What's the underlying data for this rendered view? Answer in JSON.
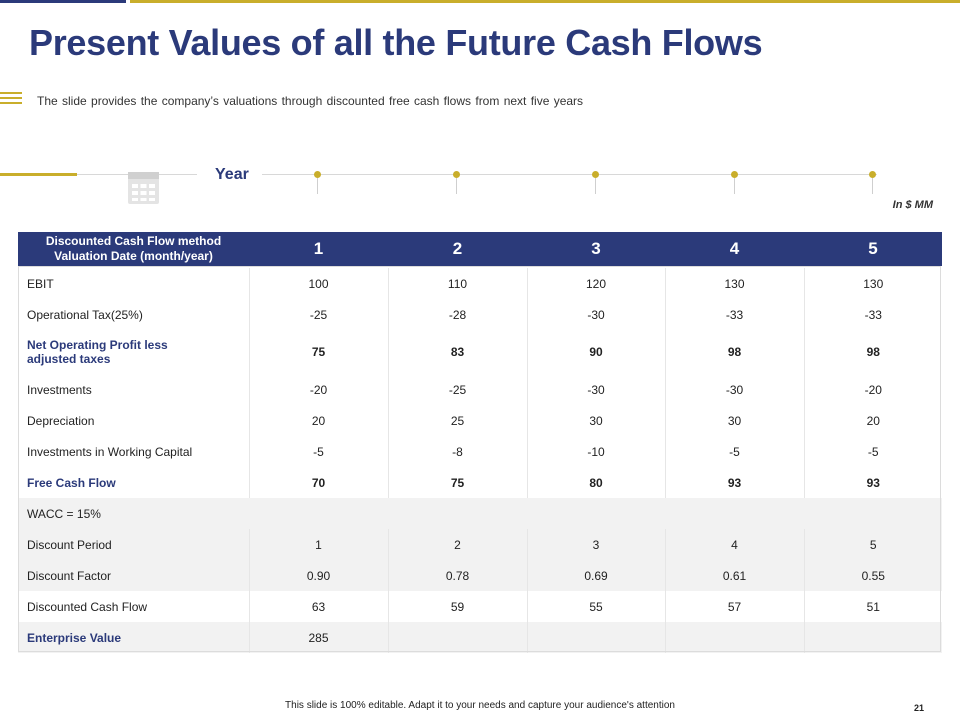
{
  "title": "Present Values of all the Future Cash Flows",
  "subtitle": "The slide provides  the company’s valuations  through discounted free cash flows from next five  years",
  "timeline": {
    "label": "Year",
    "units": "In $ MM"
  },
  "colors": {
    "navy": "#2b3a7a",
    "gold": "#c9ae2b"
  },
  "table": {
    "header_line1": "Discounted  Cash Flow method",
    "header_line2": "Valuation Date (month/year)",
    "columns": [
      "1",
      "2",
      "3",
      "4",
      "5"
    ],
    "rows": {
      "ebit": {
        "label": "EBIT",
        "values": [
          "100",
          "110",
          "120",
          "130",
          "130"
        ]
      },
      "tax": {
        "label": "Operational Tax(25%)",
        "values": [
          "-25",
          "-28",
          "-30",
          "-33",
          "-33"
        ]
      },
      "nopat": {
        "label_line1": "Net Operating  Profit less",
        "label_line2": "adjusted  taxes",
        "values": [
          "75",
          "83",
          "90",
          "98",
          "98"
        ]
      },
      "investments": {
        "label": "Investments",
        "values": [
          "-20",
          "-25",
          "-30",
          "-30",
          "-20"
        ]
      },
      "depreciation": {
        "label": "Depreciation",
        "values": [
          "20",
          "25",
          "30",
          "30",
          "20"
        ]
      },
      "working_capital": {
        "label": "Investments in Working Capital",
        "values": [
          "-5",
          "-8",
          "-10",
          "-5",
          "-5"
        ]
      },
      "fcf": {
        "label": "Free Cash Flow",
        "values": [
          "70",
          "75",
          "80",
          "93",
          "93"
        ]
      },
      "wacc": {
        "label": "WACC = 15%"
      },
      "period": {
        "label": "Discount Period",
        "values": [
          "1",
          "2",
          "3",
          "4",
          "5"
        ]
      },
      "factor": {
        "label": "Discount Factor",
        "values": [
          "0.90",
          "0.78",
          "0.69",
          "0.61",
          "0.55"
        ]
      },
      "dcf": {
        "label": "Discounted Cash Flow",
        "values": [
          "63",
          "59",
          "55",
          "57",
          "51"
        ]
      },
      "ev": {
        "label": "Enterprise Value",
        "value": "285"
      }
    }
  },
  "footer": "This slide is 100% editable.  Adapt it to your needs and capture your audience's attention",
  "page_number": "21"
}
